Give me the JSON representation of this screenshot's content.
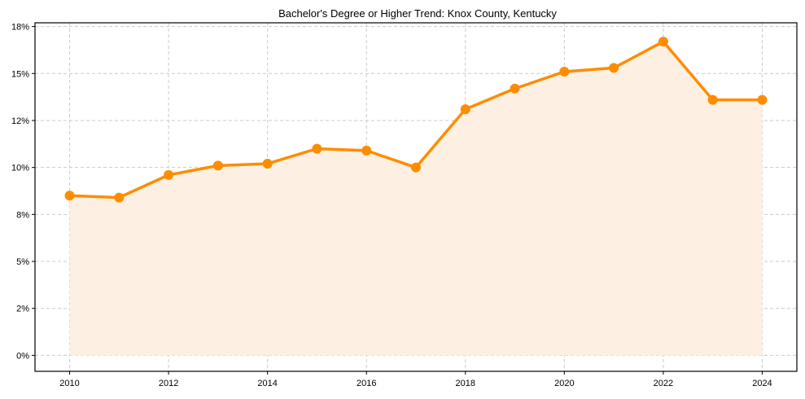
{
  "chart_data": {
    "type": "line",
    "title": "Bachelor's Degree or Higher Trend: Knox County, Kentucky",
    "xlabel": "",
    "ylabel": "",
    "x": [
      2010,
      2011,
      2012,
      2013,
      2014,
      2015,
      2016,
      2017,
      2018,
      2019,
      2020,
      2021,
      2022,
      2023,
      2024
    ],
    "series": [
      {
        "name": "Bachelor's Degree or Higher (%)",
        "values": [
          8.5,
          8.4,
          9.6,
          10.1,
          10.2,
          11.0,
          10.9,
          10.0,
          13.1,
          14.2,
          15.1,
          15.3,
          16.7,
          13.6,
          13.6
        ],
        "color": "#ff8c00",
        "fill": "#fdf0e2",
        "marker": "circle"
      }
    ],
    "xticks": [
      2010,
      2012,
      2014,
      2016,
      2018,
      2020,
      2022,
      2024
    ],
    "xtick_labels": [
      "2010",
      "2012",
      "2014",
      "2016",
      "2018",
      "2020",
      "2022",
      "2024"
    ],
    "yticks": [
      0,
      2.5,
      5,
      7.5,
      10,
      12.5,
      15,
      17.5
    ],
    "ytick_labels": [
      "0%",
      "2%",
      "5%",
      "8%",
      "10%",
      "12%",
      "15%",
      "18%"
    ],
    "xlim": [
      2009.3,
      2024.7
    ],
    "ylim": [
      -0.85,
      17.7
    ],
    "grid": true,
    "legend": null
  }
}
